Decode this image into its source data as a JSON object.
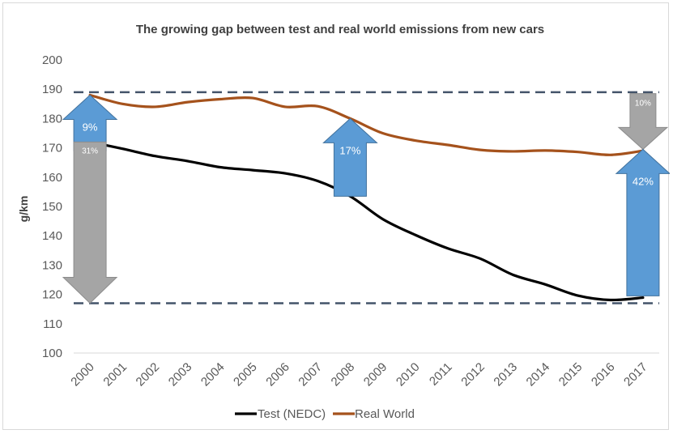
{
  "chart_data": {
    "type": "line",
    "title": "The growing gap between test and real world emissions from new cars",
    "xlabel": "",
    "ylabel": "g/km",
    "ylim": [
      100,
      200
    ],
    "yticks": [
      100,
      110,
      120,
      130,
      140,
      150,
      160,
      170,
      180,
      190,
      200
    ],
    "grid": false,
    "legend_position": "bottom",
    "categories": [
      "2000",
      "2001",
      "2002",
      "2003",
      "2004",
      "2005",
      "2006",
      "2007",
      "2008",
      "2009",
      "2010",
      "2011",
      "2012",
      "2013",
      "2014",
      "2015",
      "2016",
      "2017"
    ],
    "series": [
      {
        "name": "Test (NEDC)",
        "color": "#000000",
        "values": [
          172,
          169.7,
          167.2,
          165.5,
          163.4,
          162.4,
          161.3,
          158.7,
          153.5,
          145.7,
          140.3,
          135.7,
          132.2,
          126.7,
          123.4,
          119.6,
          118.1,
          118.9
        ]
      },
      {
        "name": "Real World",
        "color": "#a5521c",
        "values": [
          188,
          185,
          184,
          185.6,
          186.6,
          187,
          184,
          184.2,
          180,
          175,
          172.5,
          171,
          169.3,
          168.8,
          169.1,
          168.6,
          167.6,
          169
        ]
      }
    ],
    "reference_lines": [
      {
        "value": 189,
        "color": "#44546a",
        "style": "dashed"
      },
      {
        "value": 117,
        "color": "#44546a",
        "style": "dashed"
      }
    ],
    "annotations": [
      {
        "label": "9%",
        "kind": "blue-up-arrow",
        "category": "2000",
        "from": 169,
        "to": 188
      },
      {
        "label": "31%",
        "kind": "grey-double-arrow",
        "category": "2000",
        "from": 117,
        "to": 172
      },
      {
        "label": "17%",
        "kind": "blue-up-arrow",
        "category": "2008",
        "from": 153.5,
        "to": 180
      },
      {
        "label": "10%",
        "kind": "grey-down-arrow",
        "category": "2017",
        "from": 188.5,
        "to": 169.5
      },
      {
        "label": "42%",
        "kind": "blue-up-arrow",
        "category": "2017",
        "from": 119.5,
        "to": 169.5
      }
    ],
    "annotation_colors": {
      "blue": "#5b9bd5",
      "blue_edge": "#41719c",
      "grey": "#a5a5a5",
      "grey_edge": "#8c8c8c"
    }
  }
}
